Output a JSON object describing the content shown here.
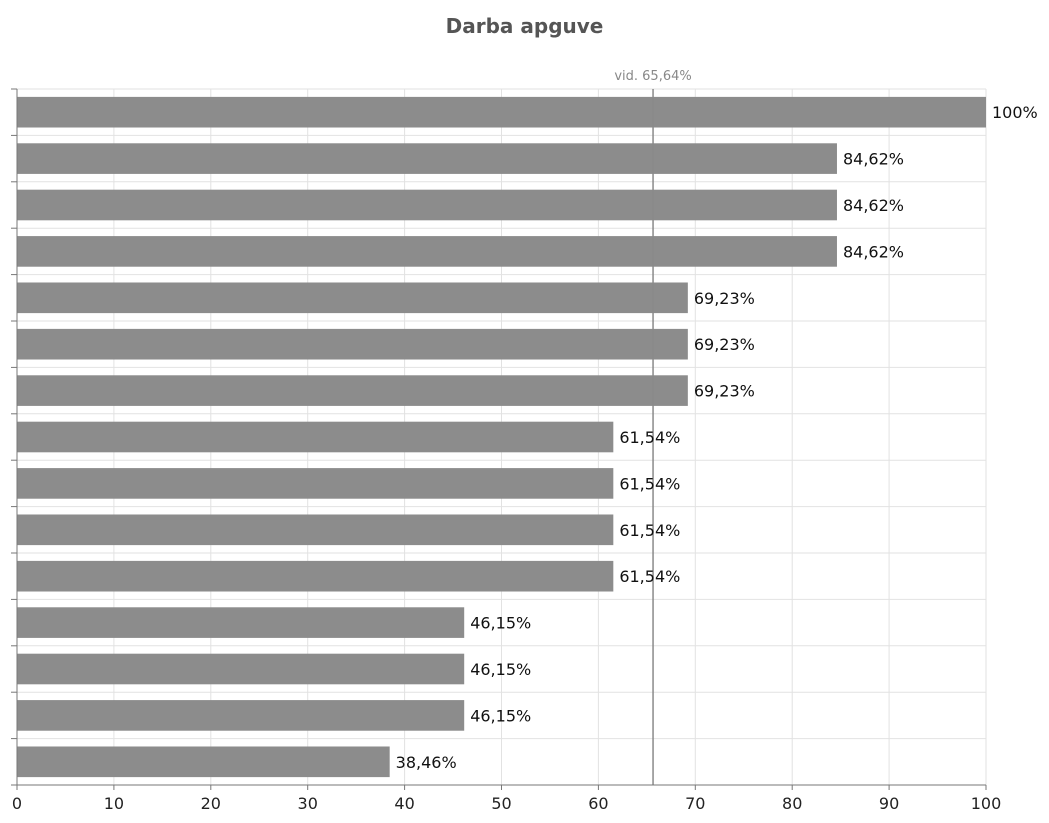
{
  "chart_data": {
    "type": "bar",
    "orientation": "horizontal",
    "title": "Darba apguve",
    "xlabel": "",
    "ylabel": "",
    "xlim": [
      0,
      100
    ],
    "x_ticks": [
      "0",
      "10",
      "20",
      "30",
      "40",
      "50",
      "60",
      "70",
      "80",
      "90",
      "100"
    ],
    "grid": true,
    "values": [
      100,
      84.62,
      84.62,
      84.62,
      69.23,
      69.23,
      69.23,
      61.54,
      61.54,
      61.54,
      61.54,
      46.15,
      46.15,
      46.15,
      38.46
    ],
    "value_labels": [
      "100%",
      "84,62%",
      "84,62%",
      "84,62%",
      "69,23%",
      "69,23%",
      "69,23%",
      "61,54%",
      "61,54%",
      "61,54%",
      "61,54%",
      "46,15%",
      "46,15%",
      "46,15%",
      "38,46%"
    ],
    "average_line": {
      "value": 65.64,
      "label": "vid. 65,64%"
    },
    "colors": {
      "bar": "#8c8c8c",
      "grid": "#e2e2e2",
      "axis": "#777777",
      "average_line": "#8a8a8a",
      "title": "#555555",
      "label": "#111111"
    }
  }
}
